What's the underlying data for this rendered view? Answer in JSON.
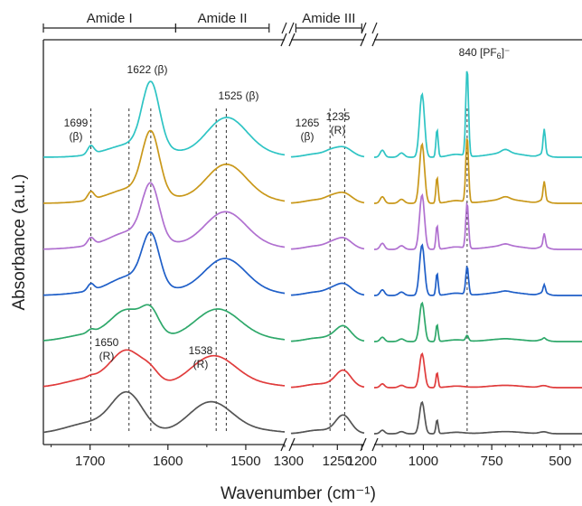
{
  "chart_data": {
    "type": "line",
    "xlabel": "Wavenumber (cm⁻¹)",
    "ylabel": "Absorbance (a.u.)",
    "broken_x_axis": true,
    "panels": [
      {
        "name": "amide-I-II",
        "xlim": [
          1760,
          1450
        ],
        "ticks": [
          1700,
          1600,
          1500
        ],
        "tick_labels": [
          "1700",
          "1600",
          "1500"
        ]
      },
      {
        "name": "amide-III",
        "xlim": [
          1345,
          1195
        ],
        "ticks": [
          1250,
          1200
        ],
        "tick_labels": [
          "1250",
          "1200"
        ]
      },
      {
        "name": "fingerprint",
        "xlim": [
          1180,
          420
        ],
        "ticks": [
          1000,
          750,
          500
        ],
        "tick_labels": [
          "1000",
          "750",
          "500"
        ]
      }
    ],
    "extra_tick_labels": [
      {
        "at_panel": "amide-III",
        "x": 1300,
        "label": "1300"
      }
    ],
    "regions": [
      {
        "label": "Amide I",
        "from": 1760,
        "to": 1590
      },
      {
        "label": "Amide II",
        "from": 1590,
        "to": 1470
      },
      {
        "label": "Amide III",
        "from": 1335,
        "to": 1200
      }
    ],
    "annotations": [
      {
        "text": "1699",
        "sub": "(β)",
        "x": 1699
      },
      {
        "text": "1622 (β)",
        "x": 1622
      },
      {
        "text": "1525 (β)",
        "x": 1525
      },
      {
        "text": "1265",
        "sub": "(β)",
        "x": 1265
      },
      {
        "text": "1235",
        "sub": "(R)",
        "x": 1235
      },
      {
        "text": "840 [PF",
        "sub_script": "6",
        "sup_script": "]⁻",
        "x": 840
      },
      {
        "text": "1650",
        "sub": "(R)",
        "x": 1650
      },
      {
        "text": "1538",
        "sub": "(R)",
        "x": 1538
      }
    ],
    "reference_lines_x": [
      1699,
      1650,
      1622,
      1538,
      1525,
      1265,
      1235,
      840
    ],
    "series": [
      {
        "color": "#2ec4c4",
        "offset": 6,
        "beta": 1.0,
        "pf6": 1.0
      },
      {
        "color": "#c9981a",
        "offset": 5,
        "beta": 0.95,
        "pf6": 0.8
      },
      {
        "color": "#b070d0",
        "offset": 4,
        "beta": 0.85,
        "pf6": 0.6
      },
      {
        "color": "#1f5fc8",
        "offset": 3,
        "beta": 0.8,
        "pf6": 0.4
      },
      {
        "color": "#2ea86a",
        "offset": 2,
        "beta": 0.35,
        "pf6": 0.1
      },
      {
        "color": "#e03c3c",
        "offset": 1,
        "beta": 0.15,
        "pf6": 0.0
      },
      {
        "color": "#555555",
        "offset": 0,
        "beta": 0.0,
        "pf6": 0.0
      }
    ]
  }
}
